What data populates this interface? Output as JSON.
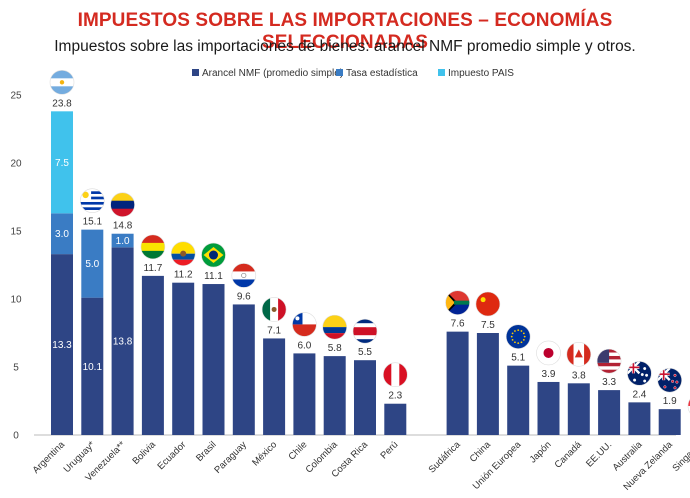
{
  "header": {
    "title": "IMPUESTOS SOBRE LAS IMPORTACIONES – ECONOMÍAS SELECCIONADAS",
    "subtitle": "Impuestos sobre las importaciones de bienes: arancel NMF promedio simple y otros."
  },
  "chart_data": {
    "type": "bar",
    "stacked": true,
    "ylim": [
      0,
      25
    ],
    "yticks": [
      0,
      5,
      10,
      15,
      20,
      25
    ],
    "legend_position": "top",
    "series": [
      {
        "name": "Arancel NMF (promedio simple)",
        "color": "#2e4585"
      },
      {
        "name": "Tasa estadística",
        "color": "#3a7cc4"
      },
      {
        "name": "Impuesto PAIS",
        "color": "#40c2ec"
      }
    ],
    "categories": [
      {
        "label": "Argentina",
        "values": [
          13.3,
          3.0,
          7.5
        ],
        "total": "23.8",
        "seg_labels": [
          "13.3",
          "3.0",
          "7.5"
        ],
        "flag": "argentina"
      },
      {
        "label": "Uruguay*",
        "values": [
          10.1,
          5.0,
          0
        ],
        "total": "15.1",
        "seg_labels": [
          "10.1",
          "5.0",
          ""
        ],
        "flag": "uruguay"
      },
      {
        "label": "Venezuela**",
        "values": [
          13.8,
          1.0,
          0
        ],
        "total": "14.8",
        "seg_labels": [
          "13.8",
          "1.0",
          ""
        ],
        "flag": "venezuela"
      },
      {
        "label": "Bolivia",
        "values": [
          11.7,
          0,
          0
        ],
        "total": "11.7",
        "seg_labels": [
          "",
          "",
          ""
        ],
        "flag": "bolivia"
      },
      {
        "label": "Ecuador",
        "values": [
          11.2,
          0,
          0
        ],
        "total": "11.2",
        "seg_labels": [
          "",
          "",
          ""
        ],
        "flag": "ecuador"
      },
      {
        "label": "Brasil",
        "values": [
          11.1,
          0,
          0
        ],
        "total": "11.1",
        "seg_labels": [
          "",
          "",
          ""
        ],
        "flag": "brasil"
      },
      {
        "label": "Paraguay",
        "values": [
          9.6,
          0,
          0
        ],
        "total": "9.6",
        "seg_labels": [
          "",
          "",
          ""
        ],
        "flag": "paraguay"
      },
      {
        "label": "México",
        "values": [
          7.1,
          0,
          0
        ],
        "total": "7.1",
        "seg_labels": [
          "",
          "",
          ""
        ],
        "flag": "mexico"
      },
      {
        "label": "Chile",
        "values": [
          6.0,
          0,
          0
        ],
        "total": "6.0",
        "seg_labels": [
          "",
          "",
          ""
        ],
        "flag": "chile"
      },
      {
        "label": "Colombia",
        "values": [
          5.8,
          0,
          0
        ],
        "total": "5.8",
        "seg_labels": [
          "",
          "",
          ""
        ],
        "flag": "colombia"
      },
      {
        "label": "Costa Rica",
        "values": [
          5.5,
          0,
          0
        ],
        "total": "5.5",
        "seg_labels": [
          "",
          "",
          ""
        ],
        "flag": "costarica"
      },
      {
        "label": "Perú",
        "values": [
          2.3,
          0,
          0
        ],
        "total": "2.3",
        "seg_labels": [
          "",
          "",
          ""
        ],
        "flag": "peru"
      },
      {
        "label": "Sudáfrica",
        "values": [
          7.6,
          0,
          0
        ],
        "total": "7.6",
        "seg_labels": [
          "",
          "",
          ""
        ],
        "flag": "sudafrica"
      },
      {
        "label": "China",
        "values": [
          7.5,
          0,
          0
        ],
        "total": "7.5",
        "seg_labels": [
          "",
          "",
          ""
        ],
        "flag": "china"
      },
      {
        "label": "Unión Europea",
        "values": [
          5.1,
          0,
          0
        ],
        "total": "5.1",
        "seg_labels": [
          "",
          "",
          ""
        ],
        "flag": "ue"
      },
      {
        "label": "Japón",
        "values": [
          3.9,
          0,
          0
        ],
        "total": "3.9",
        "seg_labels": [
          "",
          "",
          ""
        ],
        "flag": "japon"
      },
      {
        "label": "Canadá",
        "values": [
          3.8,
          0,
          0
        ],
        "total": "3.8",
        "seg_labels": [
          "",
          "",
          ""
        ],
        "flag": "canada"
      },
      {
        "label": "EE.UU.",
        "values": [
          3.3,
          0,
          0
        ],
        "total": "3.3",
        "seg_labels": [
          "",
          "",
          ""
        ],
        "flag": "eeuu"
      },
      {
        "label": "Australia",
        "values": [
          2.4,
          0,
          0
        ],
        "total": "2.4",
        "seg_labels": [
          "",
          "",
          ""
        ],
        "flag": "australia"
      },
      {
        "label": "Nueva Zelanda",
        "values": [
          1.9,
          0,
          0
        ],
        "total": "1.9",
        "seg_labels": [
          "",
          "",
          ""
        ],
        "flag": "nuevazelanda"
      },
      {
        "label": "Singapur",
        "values": [
          0.0,
          0,
          0
        ],
        "total": "0.0",
        "seg_labels": [
          "",
          "",
          ""
        ],
        "flag": "singapur"
      }
    ]
  }
}
